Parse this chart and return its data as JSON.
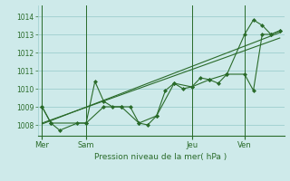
{
  "title": "Pression niveau de la mer( hPa )",
  "bg_color": "#ceeaea",
  "grid_color": "#9ecece",
  "line_color": "#2a6b2a",
  "ylim": [
    1007.4,
    1014.6
  ],
  "yticks": [
    1008,
    1009,
    1010,
    1011,
    1012,
    1013,
    1014
  ],
  "day_labels": [
    "Mer",
    "Sam",
    "Jeu",
    "Ven"
  ],
  "day_positions": [
    0.5,
    5.5,
    17.5,
    23.5
  ],
  "vline_positions": [
    0.5,
    5.5,
    17.5,
    23.5
  ],
  "xlim": [
    0,
    28
  ],
  "series1_x": [
    0.5,
    1.5,
    2.5,
    4.5,
    5.5,
    6.5,
    7.5,
    8.5,
    9.5,
    10.5,
    11.5,
    12.5,
    13.5,
    14.5,
    15.5,
    16.5,
    17.5,
    18.5,
    19.5,
    20.5,
    21.5,
    23.5,
    24.5,
    25.5,
    26.5,
    27.5
  ],
  "series1_y": [
    1009.0,
    1008.1,
    1007.7,
    1008.1,
    1008.1,
    1010.4,
    1009.3,
    1009.0,
    1009.0,
    1009.0,
    1008.1,
    1008.0,
    1008.5,
    1009.9,
    1010.3,
    1010.0,
    1010.1,
    1010.6,
    1010.5,
    1010.3,
    1010.8,
    1010.8,
    1009.9,
    1013.0,
    1013.0,
    1013.2
  ],
  "series2_x": [
    0.5,
    1.5,
    5.5,
    7.5,
    9.5,
    11.5,
    13.5,
    15.5,
    17.5,
    19.5,
    21.5,
    23.5,
    24.5,
    25.5,
    26.5,
    27.5
  ],
  "series2_y": [
    1009.0,
    1008.1,
    1008.1,
    1009.0,
    1009.0,
    1008.1,
    1008.5,
    1010.3,
    1010.1,
    1010.5,
    1010.8,
    1013.0,
    1013.8,
    1013.5,
    1013.0,
    1013.2
  ],
  "trend1_x": [
    0.5,
    27.5
  ],
  "trend1_y": [
    1008.05,
    1013.1
  ],
  "trend2_x": [
    0.5,
    27.5
  ],
  "trend2_y": [
    1008.1,
    1012.8
  ]
}
